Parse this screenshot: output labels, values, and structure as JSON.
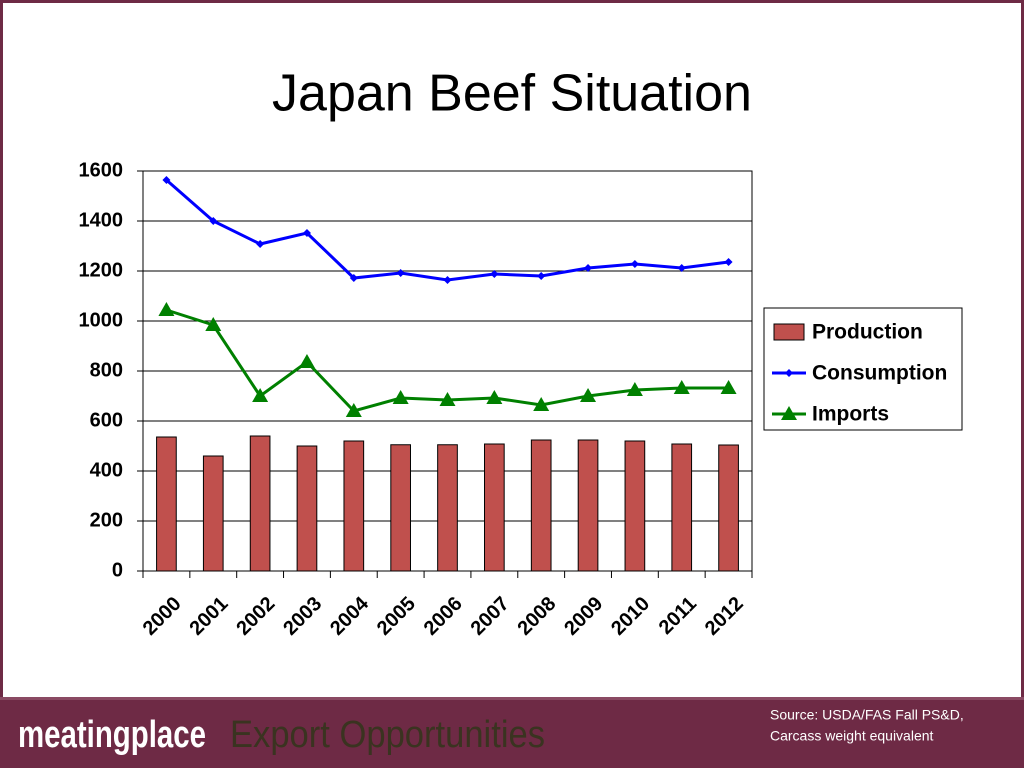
{
  "chart_data": {
    "type": "bar-line",
    "title": "Japan Beef Situation",
    "categories": [
      "2000",
      "2001",
      "2002",
      "2003",
      "2004",
      "2005",
      "2006",
      "2007",
      "2008",
      "2009",
      "2010",
      "2011",
      "2012"
    ],
    "series": [
      {
        "name": "Production",
        "type": "bar",
        "color": "#c0504d",
        "values": [
          536,
          460,
          540,
          500,
          520,
          505,
          505,
          508,
          524,
          524,
          520,
          508,
          504
        ]
      },
      {
        "name": "Consumption",
        "type": "line",
        "marker": "diamond",
        "color": "#0000ff",
        "values": [
          1564,
          1400,
          1308,
          1352,
          1172,
          1192,
          1164,
          1188,
          1180,
          1212,
          1228,
          1212,
          1236
        ]
      },
      {
        "name": "Imports",
        "type": "line",
        "marker": "triangle",
        "color": "#008000",
        "values": [
          1044,
          984,
          700,
          836,
          640,
          692,
          684,
          692,
          664,
          700,
          724,
          732,
          732
        ]
      }
    ],
    "ylim": [
      0,
      1600
    ],
    "yticks": [
      0,
      200,
      400,
      600,
      800,
      1000,
      1200,
      1400,
      1600
    ],
    "grid": true,
    "legend": "right"
  },
  "footer": {
    "brand": "meatingplace",
    "tagline": "Export Opportunities",
    "source": [
      "Source: USDA/FAS Fall PS&D,",
      "Carcass weight equivalent"
    ]
  }
}
